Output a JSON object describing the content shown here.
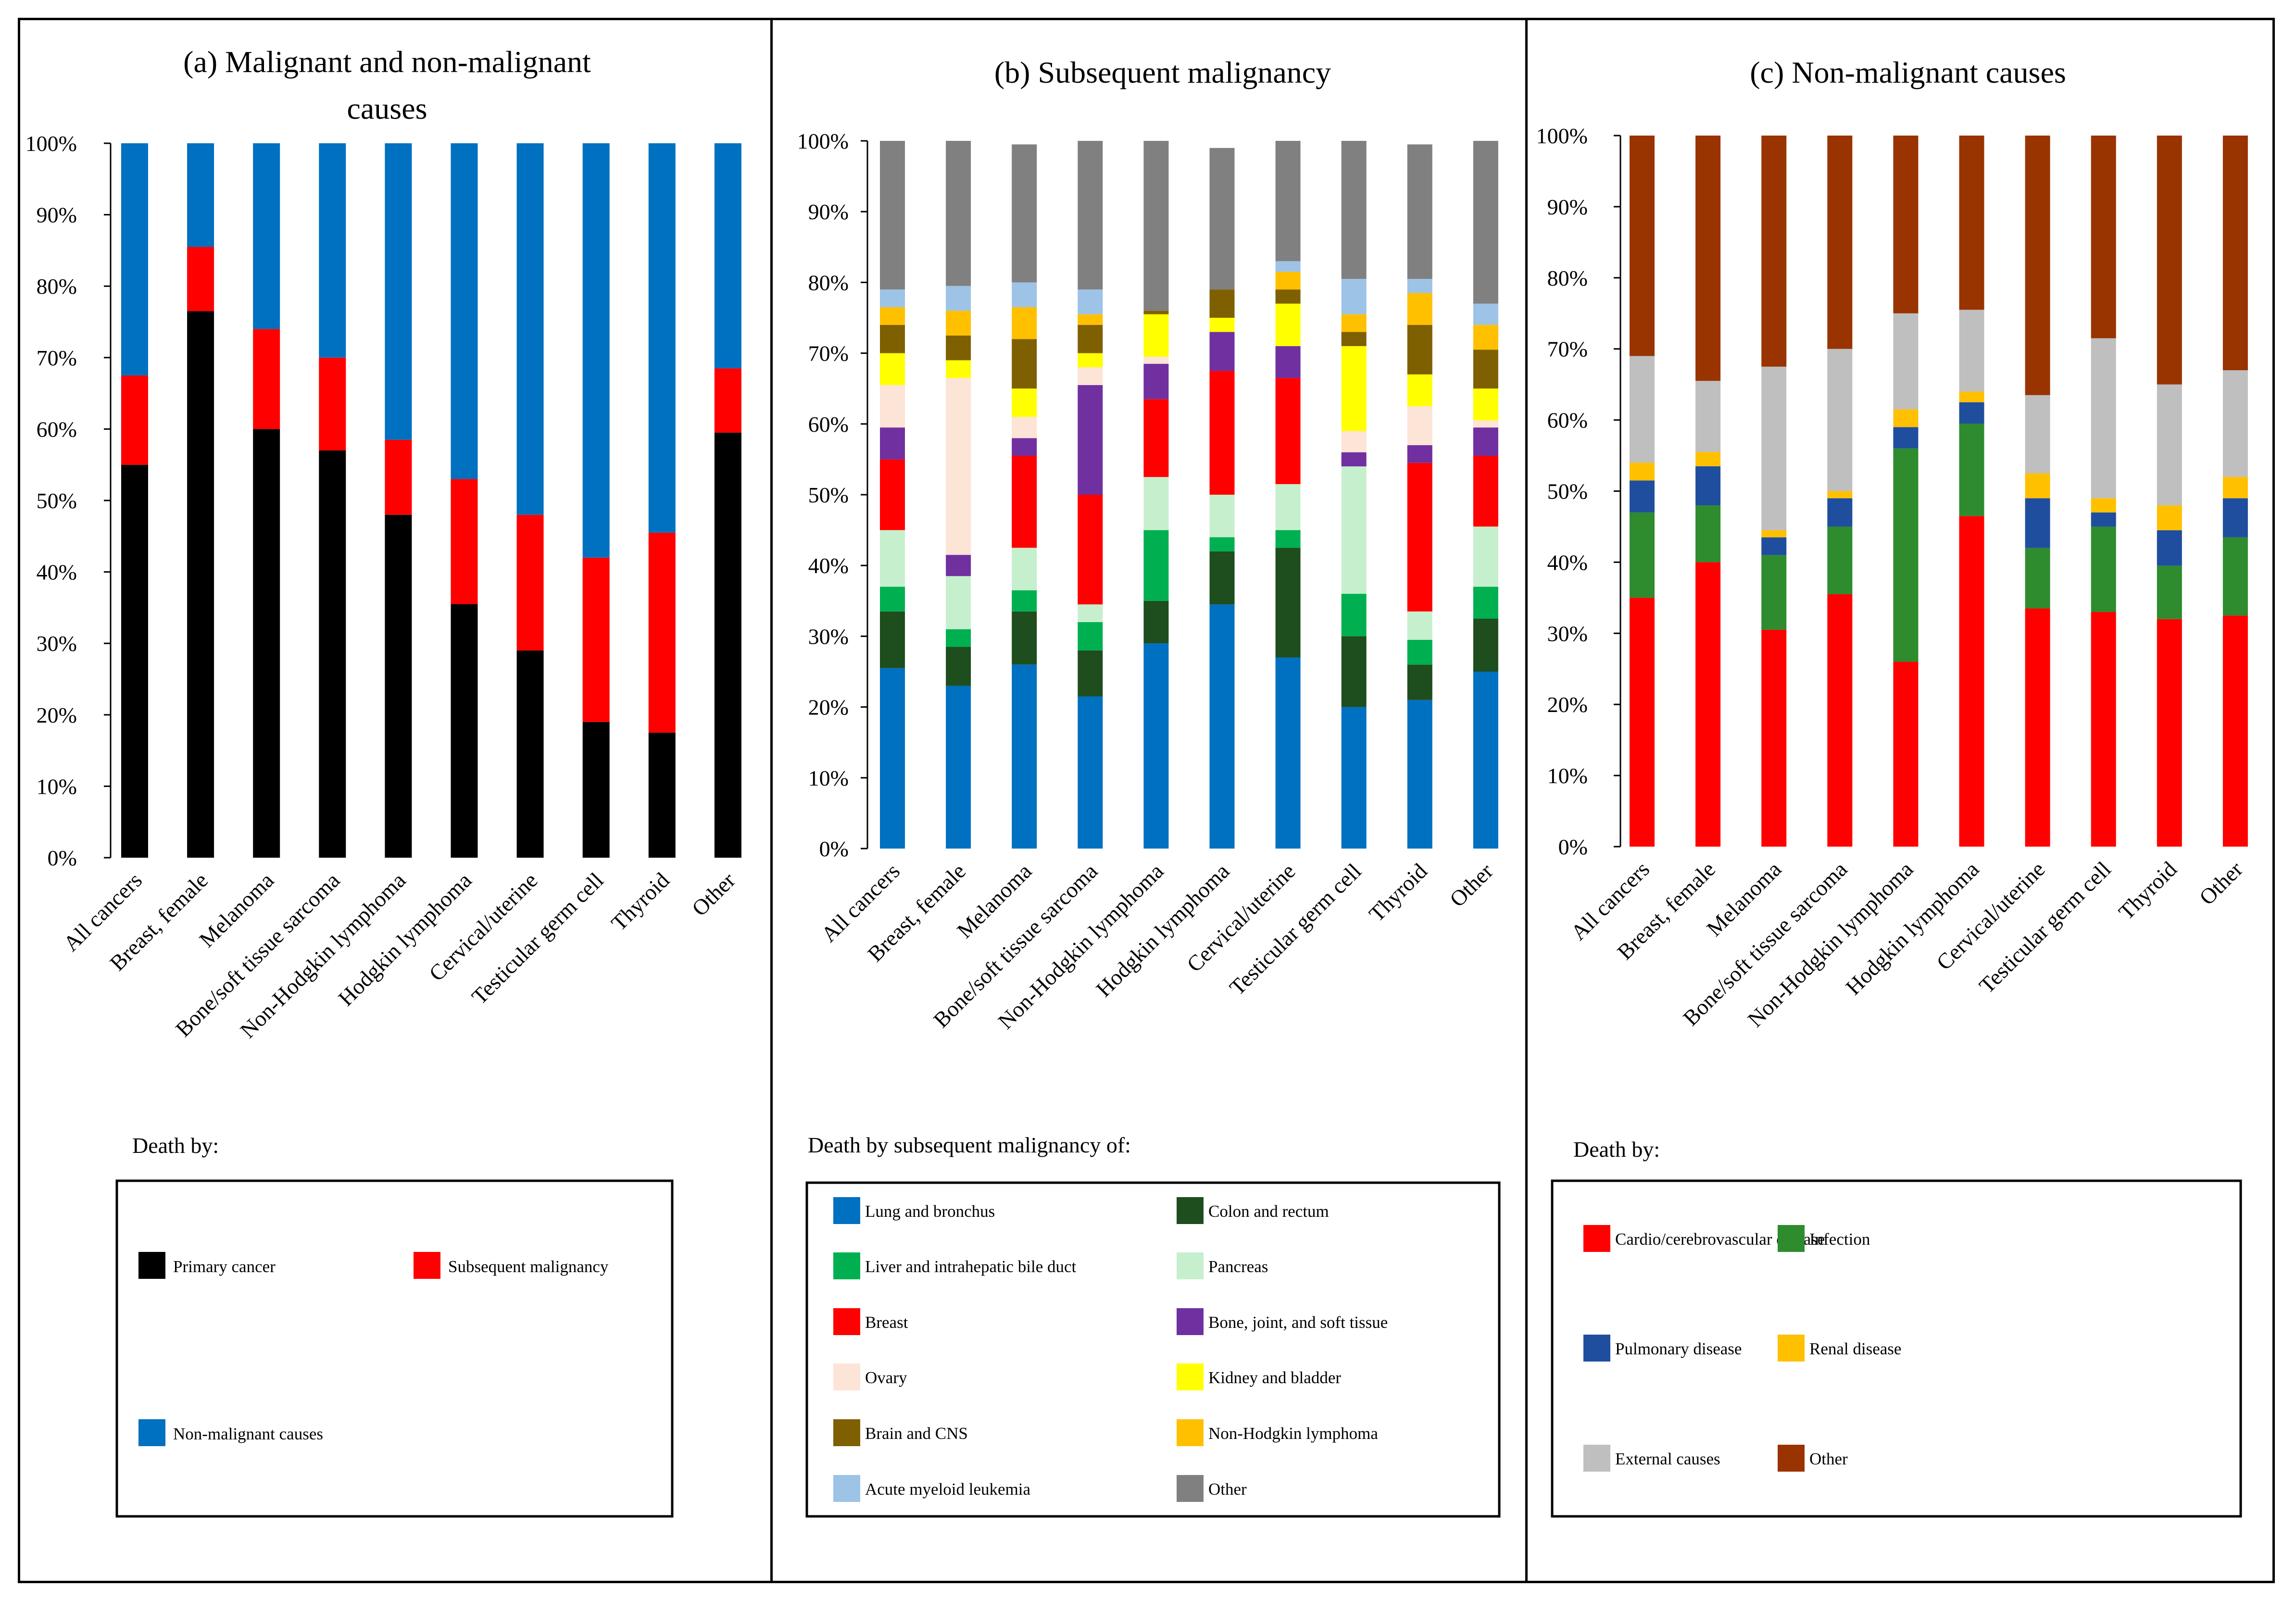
{
  "chart_data": [
    {
      "type": "bar",
      "stacked": true,
      "percent": true,
      "title": "(a) Malignant and non-malignant causes",
      "title_lines": [
        "(a) Malignant and non-malignant",
        "causes"
      ],
      "categories": [
        "All cancers",
        "Breast, female",
        "Melanoma",
        "Bone/soft tissue sarcoma",
        "Non-Hodgkin lymphoma",
        "Hodgkin lymphoma",
        "Cervical/uterine",
        "Testicular germ cell",
        "Thyroid",
        "Other"
      ],
      "yticks": [
        "0%",
        "10%",
        "20%",
        "30%",
        "40%",
        "50%",
        "60%",
        "70%",
        "80%",
        "90%",
        "100%"
      ],
      "ylim": [
        0,
        100
      ],
      "legend_title": "Death by:",
      "series": [
        {
          "name": "Primary cancer",
          "color": "#000000",
          "values": [
            55,
            76.5,
            60,
            57,
            48,
            35.5,
            29,
            19,
            17.5,
            59.5
          ]
        },
        {
          "name": "Subsequent malignancy",
          "color": "#FF0000",
          "values": [
            12.5,
            9,
            14,
            13,
            10.5,
            17.5,
            19,
            23,
            28,
            9
          ]
        },
        {
          "name": "Non-malignant causes",
          "color": "#0070C0",
          "values": [
            32.5,
            14.5,
            26,
            30,
            41.5,
            47,
            52,
            58,
            54.5,
            31.5
          ]
        }
      ]
    },
    {
      "type": "bar",
      "stacked": true,
      "percent": true,
      "title": "(b) Subsequent malignancy",
      "title_lines": [
        "(b) Subsequent malignancy"
      ],
      "categories": [
        "All cancers",
        "Breast, female",
        "Melanoma",
        "Bone/soft tissue sarcoma",
        "Non-Hodgkin lymphoma",
        "Hodgkin lymphoma",
        "Cervical/uterine",
        "Testicular germ cell",
        "Thyroid",
        "Other"
      ],
      "yticks": [
        "0%",
        "10%",
        "20%",
        "30%",
        "40%",
        "50%",
        "60%",
        "70%",
        "80%",
        "90%",
        "100%"
      ],
      "ylim": [
        0,
        100
      ],
      "legend_title": "Death by subsequent malignancy of:",
      "series": [
        {
          "name": "Lung and bronchus",
          "color": "#0070C0",
          "values": [
            25.5,
            23,
            26,
            21.5,
            29,
            34.5,
            27,
            20,
            21,
            25
          ]
        },
        {
          "name": "Colon and rectum",
          "color": "#1E4D1E",
          "values": [
            8,
            5.5,
            7.5,
            6.5,
            6,
            7.5,
            15.5,
            10,
            5,
            7.5
          ]
        },
        {
          "name": "Liver and intrahepatic bile duct",
          "color": "#00B050",
          "values": [
            3.5,
            2.5,
            3,
            4,
            10,
            2,
            2.5,
            6,
            3.5,
            4.5
          ]
        },
        {
          "name": "Pancreas",
          "color": "#C6EFCE",
          "values": [
            8,
            7.5,
            6,
            2.5,
            7.5,
            6,
            6.5,
            18,
            4,
            8.5
          ]
        },
        {
          "name": "Breast",
          "color": "#FF0000",
          "values": [
            10,
            0,
            13,
            15.5,
            11,
            17.5,
            15,
            0,
            21,
            10
          ]
        },
        {
          "name": "Bone, joint, and soft tissue",
          "color": "#7030A0",
          "values": [
            4.5,
            3,
            2.5,
            15.5,
            5,
            5.5,
            4.5,
            2,
            2.5,
            4
          ]
        },
        {
          "name": "Ovary",
          "color": "#FCE4D6",
          "values": [
            6,
            25,
            3,
            2.5,
            1,
            0,
            0,
            3,
            5.5,
            1
          ]
        },
        {
          "name": "Kidney and bladder",
          "color": "#FFFF00",
          "values": [
            4.5,
            2.5,
            4,
            2,
            6,
            2,
            6,
            12,
            4.5,
            4.5
          ]
        },
        {
          "name": "Brain and CNS",
          "color": "#7F6000",
          "values": [
            4,
            3.5,
            7,
            4,
            0.5,
            4,
            2,
            2,
            7,
            5.5
          ]
        },
        {
          "name": "Non-Hodgkin lymphoma",
          "color": "#FFC000",
          "values": [
            2.5,
            3.5,
            4.5,
            1.5,
            0,
            0,
            2.5,
            2.5,
            4.5,
            3.5
          ]
        },
        {
          "name": "Acute myeloid leukemia",
          "color": "#9DC3E6",
          "values": [
            2.5,
            3.5,
            3.5,
            3.5,
            0,
            0,
            1.5,
            5,
            2,
            3
          ]
        },
        {
          "name": "Other",
          "color": "#808080",
          "values": [
            21,
            20.5,
            19.5,
            21,
            24,
            20,
            17,
            19.5,
            19,
            23
          ]
        }
      ]
    },
    {
      "type": "bar",
      "stacked": true,
      "percent": true,
      "title": "(c) Non-malignant causes",
      "title_lines": [
        "(c) Non-malignant causes"
      ],
      "categories": [
        "All cancers",
        "Breast, female",
        "Melanoma",
        "Bone/soft tissue sarcoma",
        "Non-Hodgkin lymphoma",
        "Hodgkin lymphoma",
        "Cervical/uterine",
        "Testicular germ cell",
        "Thyroid",
        "Other"
      ],
      "yticks": [
        "0%",
        "10%",
        "20%",
        "30%",
        "40%",
        "50%",
        "60%",
        "70%",
        "80%",
        "90%",
        "100%"
      ],
      "ylim": [
        0,
        100
      ],
      "legend_title": "Death by:",
      "series": [
        {
          "name": "Cardio/cerebrovascular disease",
          "color": "#FF0000",
          "values": [
            35,
            40,
            30.5,
            35.5,
            26,
            46.5,
            33.5,
            33,
            32,
            32.5
          ]
        },
        {
          "name": "Infection",
          "color": "#2E8B2E",
          "values": [
            12,
            8,
            10.5,
            9.5,
            30,
            13,
            8.5,
            12,
            7.5,
            11
          ]
        },
        {
          "name": "Pulmonary disease",
          "color": "#1F4E9E",
          "values": [
            4.5,
            5.5,
            2.5,
            4,
            3,
            3,
            7,
            2,
            5,
            5.5
          ]
        },
        {
          "name": "Renal disease",
          "color": "#FFC000",
          "values": [
            2.5,
            2,
            1,
            1,
            2.5,
            1.5,
            3.5,
            2,
            3.5,
            3
          ]
        },
        {
          "name": "External causes",
          "color": "#BFBFBF",
          "values": [
            15,
            10,
            23,
            20,
            13.5,
            11.5,
            11,
            22.5,
            17,
            15
          ]
        },
        {
          "name": "Other",
          "color": "#993300",
          "values": [
            31,
            34.5,
            32.5,
            30,
            25,
            24.5,
            36.5,
            28.5,
            35,
            33
          ]
        }
      ]
    }
  ]
}
